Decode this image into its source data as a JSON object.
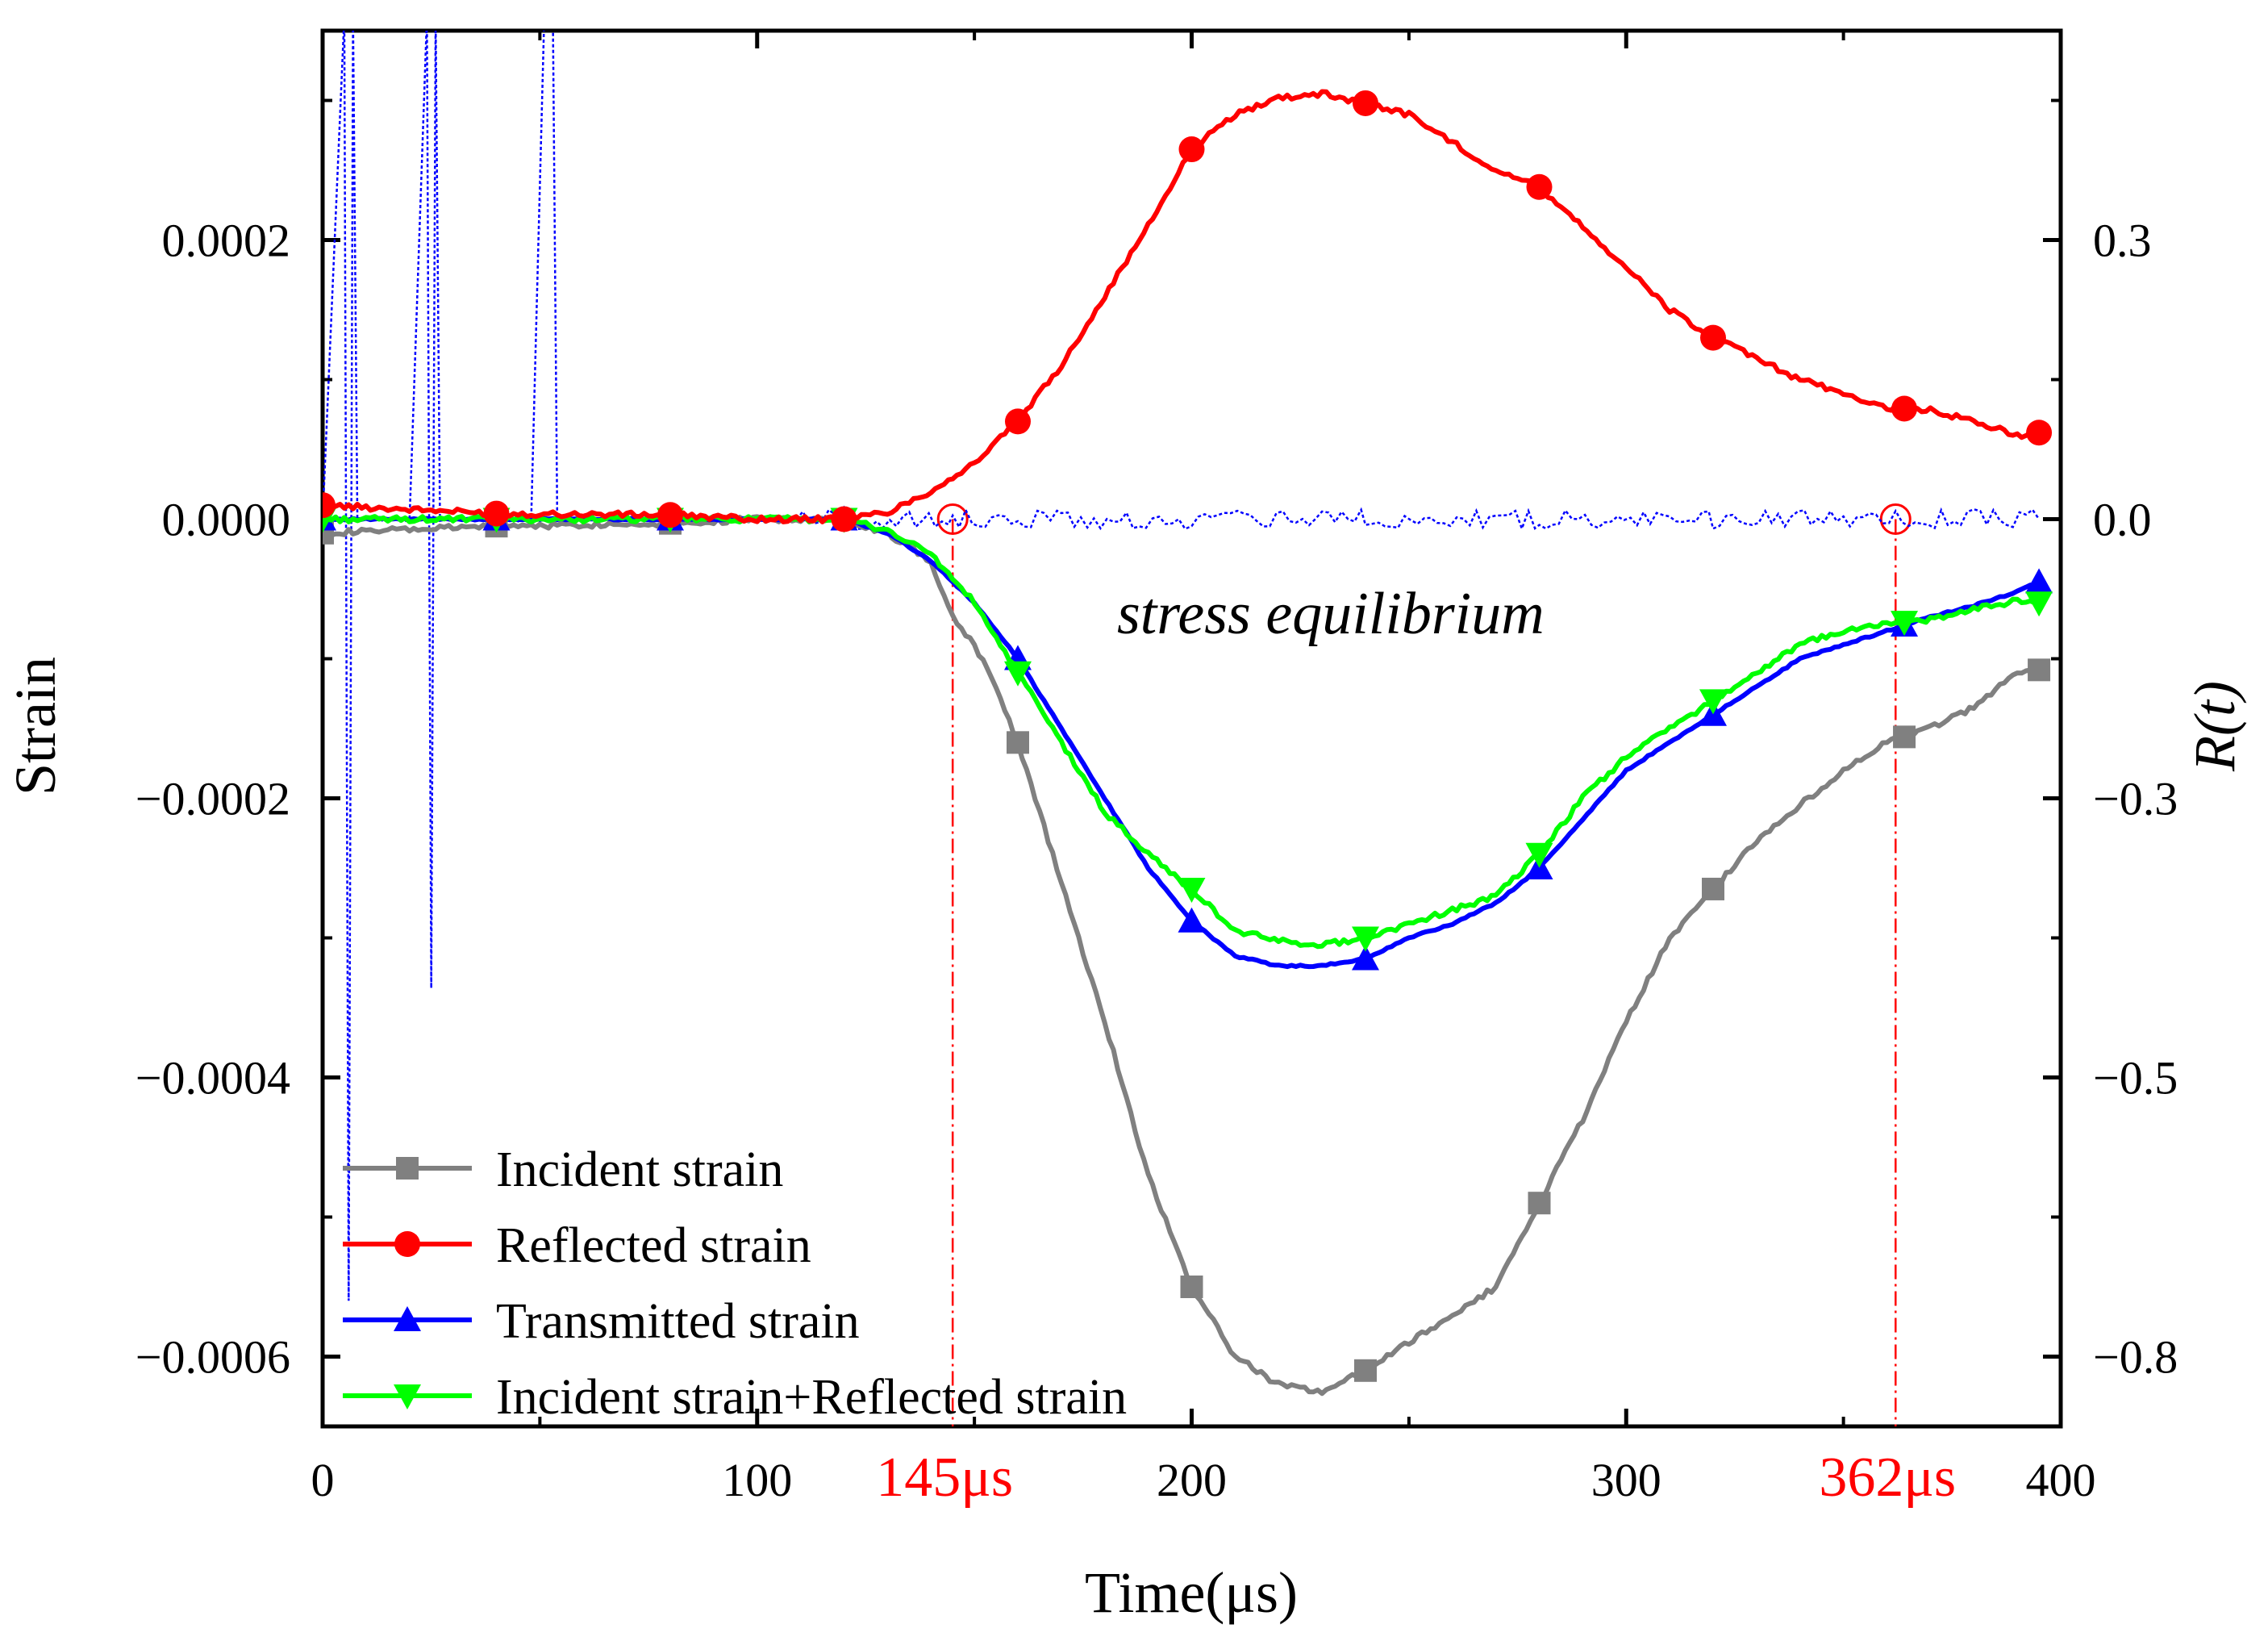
{
  "chart_data": {
    "type": "line",
    "xlabel": "Time(μs)",
    "ylabel": "Strain",
    "y2label": "R(t)",
    "xlim": [
      0,
      400
    ],
    "ylim": [
      -0.00065,
      0.00035
    ],
    "y2lim": [
      -0.8125,
      0.4375
    ],
    "xticks": [
      0,
      100,
      200,
      300,
      400
    ],
    "xtick_labels": [
      "0",
      "100",
      "200",
      "300",
      "400"
    ],
    "yticks": [
      0.0002,
      0.0,
      -0.0002,
      -0.0004,
      -0.0006
    ],
    "ytick_labels": [
      "0.0002",
      "0.0000",
      "−0.0002",
      "−0.0004",
      "−0.0006"
    ],
    "y2ticks": [
      0.25,
      0.0,
      -0.25,
      -0.5,
      -0.75
    ],
    "y2tick_labels": [
      "0.3",
      "0.0",
      "−0.3",
      "−0.5",
      "−0.8"
    ],
    "grid": false,
    "legend_position": "bottom-left",
    "annotation": "stress equilibrium",
    "markers": [
      {
        "x": 145,
        "label": "145μs",
        "color": "#ff0000"
      },
      {
        "x": 362,
        "label": "362μs",
        "color": "#ff0000"
      }
    ],
    "series": [
      {
        "name": "Incident strain",
        "color": "#808080",
        "marker": "square",
        "x": [
          0,
          40,
          80,
          100,
          120,
          130,
          140,
          145,
          150,
          155,
          160,
          165,
          170,
          180,
          190,
          200,
          210,
          220,
          230,
          240,
          250,
          260,
          270,
          280,
          290,
          300,
          310,
          320,
          330,
          340,
          350,
          360,
          370,
          380,
          390,
          395
        ],
        "y": [
          -1e-05,
          -5e-06,
          -3e-06,
          0.0,
          0.0,
          -1e-05,
          -3e-05,
          -7e-05,
          -9e-05,
          -0.00012,
          -0.00016,
          -0.00021,
          -0.00026,
          -0.00036,
          -0.00047,
          -0.00055,
          -0.0006,
          -0.00062,
          -0.000625,
          -0.00061,
          -0.00059,
          -0.00057,
          -0.00055,
          -0.00049,
          -0.00043,
          -0.00036,
          -0.0003,
          -0.000265,
          -0.00023,
          -0.000205,
          -0.00018,
          -0.00016,
          -0.00015,
          -0.000135,
          -0.00011,
          -0.000108
        ]
      },
      {
        "name": "Reflected strain",
        "color": "#ff0000",
        "marker": "circle",
        "x": [
          0,
          40,
          80,
          100,
          120,
          130,
          140,
          150,
          160,
          170,
          180,
          190,
          200,
          210,
          220,
          230,
          240,
          250,
          260,
          270,
          280,
          290,
          300,
          310,
          320,
          330,
          340,
          350,
          360,
          370,
          380,
          390,
          395
        ],
        "y": [
          1e-05,
          4e-06,
          3e-06,
          0.0,
          0.0,
          5e-06,
          2e-05,
          4e-05,
          7e-05,
          0.00011,
          0.00016,
          0.00021,
          0.000265,
          0.00029,
          0.000302,
          0.000305,
          0.000298,
          0.00029,
          0.00027,
          0.00025,
          0.000238,
          0.00021,
          0.00018,
          0.00015,
          0.00013,
          0.000115,
          0.0001,
          9e-05,
          8e-05,
          7.8e-05,
          7e-05,
          6e-05,
          6.2e-05
        ]
      },
      {
        "name": "Transmitted strain",
        "color": "#0000ff",
        "marker": "triangle-up",
        "x": [
          0,
          40,
          80,
          100,
          120,
          130,
          140,
          150,
          160,
          170,
          180,
          190,
          200,
          210,
          220,
          230,
          240,
          250,
          260,
          270,
          280,
          290,
          300,
          310,
          320,
          330,
          340,
          350,
          360,
          370,
          380,
          390,
          395
        ],
        "y": [
          0.0,
          0.0,
          0.0,
          0.0,
          0.0,
          -1e-05,
          -3e-05,
          -6e-05,
          -0.0001,
          -0.00015,
          -0.0002,
          -0.00025,
          -0.000288,
          -0.000313,
          -0.00032,
          -0.00032,
          -0.000315,
          -0.0003,
          -0.00029,
          -0.000275,
          -0.00025,
          -0.000215,
          -0.00018,
          -0.00016,
          -0.00014,
          -0.00012,
          -0.0001,
          -9e-05,
          -8e-05,
          -7e-05,
          -6.2e-05,
          -5.2e-05,
          -4.5e-05
        ]
      },
      {
        "name": "Incident strain+Reflected strain",
        "color": "#00ff00",
        "marker": "triangle-down",
        "x": [
          0,
          40,
          80,
          100,
          120,
          130,
          140,
          150,
          160,
          170,
          180,
          190,
          200,
          210,
          220,
          230,
          240,
          250,
          260,
          270,
          280,
          290,
          300,
          310,
          320,
          330,
          340,
          350,
          360,
          370,
          380,
          390,
          395
        ],
        "y": [
          0.0,
          0.0,
          0.0,
          0.0,
          0.0,
          -8e-06,
          -2.5e-05,
          -6e-05,
          -0.00011,
          -0.00016,
          -0.00021,
          -0.00024,
          -0.000265,
          -0.000295,
          -0.000302,
          -0.000305,
          -0.0003,
          -0.00029,
          -0.00028,
          -0.00027,
          -0.00024,
          -0.0002,
          -0.00017,
          -0.00015,
          -0.00013,
          -0.00011,
          -9e-05,
          -8e-05,
          -7.5e-05,
          -7.2e-05,
          -6.5e-05,
          -5.8e-05,
          -6e-05
        ]
      },
      {
        "name": "R(t)",
        "axis": "right",
        "color": "#0000ff",
        "dashed": true,
        "in_legend": false,
        "x": [
          0,
          5,
          6,
          7,
          8,
          20,
          24,
          25,
          26,
          27,
          48,
          51,
          52,
          53,
          54,
          60,
          80,
          100,
          120,
          145,
          160,
          170,
          200,
          240,
          280,
          320,
          362,
          380,
          395
        ],
        "y": [
          0.0,
          0.45,
          -0.7,
          0.45,
          0.0,
          0.0,
          0.45,
          -0.42,
          0.45,
          0.0,
          0.0,
          0.45,
          0.45,
          0.45,
          0.0,
          0.0,
          0.0,
          0.0,
          0.0,
          0.0,
          0.0,
          0.0,
          0.0,
          0.0,
          0.0,
          0.0,
          0.0,
          0.0,
          0.0
        ]
      }
    ]
  }
}
